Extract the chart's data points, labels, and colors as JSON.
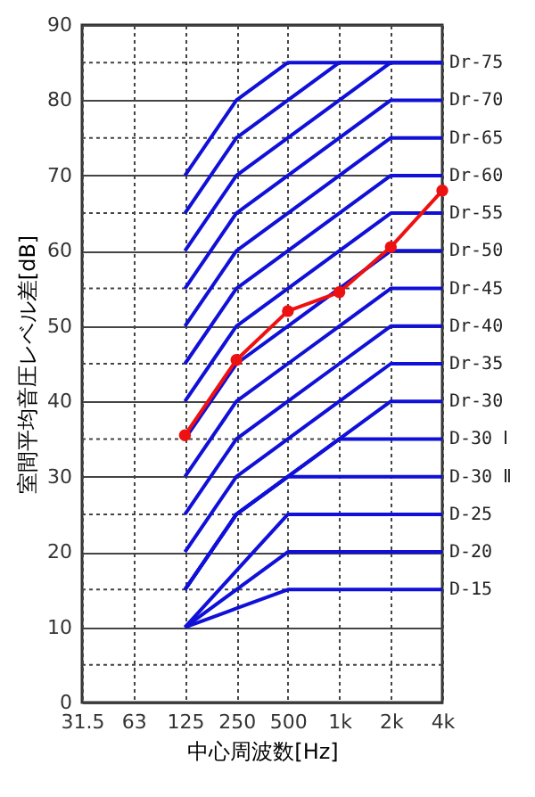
{
  "chart_data": {
    "type": "line",
    "xlabel": "中心周波数[Hz]",
    "ylabel": "室間平均音圧レベル差[dB]",
    "categories": [
      "31.5",
      "63",
      "125",
      "250",
      "500",
      "1k",
      "2k",
      "4k"
    ],
    "ylim": [
      0,
      90
    ],
    "yticks": [
      0,
      {
        "value": 5,
        "label": null
      },
      10,
      {
        "value": 15,
        "label": null
      },
      20,
      {
        "value": 25,
        "label": null
      },
      30,
      {
        "value": 35,
        "label": null
      },
      40,
      {
        "value": 45,
        "label": null
      },
      50,
      {
        "value": 55,
        "label": null
      },
      60,
      {
        "value": 65,
        "label": null
      },
      70,
      {
        "value": 75,
        "label": null
      },
      80,
      {
        "value": 85,
        "label": null
      },
      90
    ],
    "grid": true,
    "series": [
      {
        "color": "#1010d8",
        "values": [
          null,
          null,
          70,
          80,
          85,
          85,
          85,
          85
        ]
      },
      {
        "color": "#1010d8",
        "values": [
          null,
          null,
          65,
          75,
          80,
          85,
          85,
          85
        ]
      },
      {
        "name": "Dr-75",
        "color": "#1010d8",
        "values": [
          null,
          null,
          60,
          70,
          75,
          80,
          85,
          85
        ]
      },
      {
        "name": "Dr-70",
        "color": "#1010d8",
        "values": [
          null,
          null,
          55,
          65,
          70,
          75,
          80,
          80
        ]
      },
      {
        "name": "Dr-65",
        "color": "#1010d8",
        "values": [
          null,
          null,
          50,
          60,
          65,
          70,
          75,
          75
        ]
      },
      {
        "name": "Dr-60",
        "color": "#1010d8",
        "values": [
          null,
          null,
          45,
          55,
          60,
          65,
          70,
          70
        ]
      },
      {
        "name": "Dr-55",
        "color": "#1010d8",
        "values": [
          null,
          null,
          40,
          50,
          55,
          60,
          65,
          65
        ]
      },
      {
        "name": "Dr-50",
        "color": "#1010d8",
        "values": [
          null,
          null,
          35,
          45,
          50,
          55,
          60,
          60
        ]
      },
      {
        "name": "Dr-45",
        "color": "#1010d8",
        "values": [
          null,
          null,
          30,
          40,
          45,
          50,
          55,
          55
        ]
      },
      {
        "name": "Dr-40",
        "color": "#1010d8",
        "values": [
          null,
          null,
          25,
          35,
          40,
          45,
          50,
          50
        ]
      },
      {
        "name": "Dr-35",
        "color": "#1010d8",
        "values": [
          null,
          null,
          20,
          30,
          35,
          40,
          45,
          45
        ]
      },
      {
        "name": "Dr-30",
        "color": "#1010d8",
        "values": [
          null,
          null,
          15,
          25,
          30,
          35,
          40,
          40
        ]
      },
      {
        "name": "D-30 Ⅰ",
        "color": "#1010d8",
        "values": [
          null,
          null,
          15,
          25,
          30,
          35,
          35,
          35
        ]
      },
      {
        "name": "D-30 Ⅱ",
        "color": "#1010d8",
        "values": [
          null,
          null,
          15,
          25,
          30,
          30,
          30,
          30
        ]
      },
      {
        "name": "D-25",
        "color": "#1010d8",
        "values": [
          null,
          null,
          10,
          17.5,
          25,
          25,
          25,
          25
        ]
      },
      {
        "name": "D-20",
        "color": "#1010d8",
        "values": [
          null,
          null,
          10,
          15,
          20,
          20,
          20,
          20
        ]
      },
      {
        "name": "D-15",
        "color": "#1010d8",
        "values": [
          null,
          null,
          10,
          12.5,
          15,
          15,
          15,
          15
        ]
      },
      {
        "color": "#ee1111",
        "marker": "circle",
        "values": [
          null,
          null,
          35.5,
          45.5,
          52,
          54.5,
          60.5,
          68
        ]
      }
    ]
  }
}
